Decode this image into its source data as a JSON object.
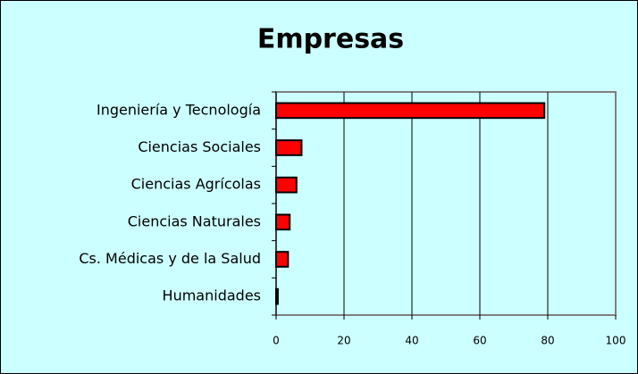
{
  "chart_data": {
    "type": "barh",
    "title": "Empresas",
    "categories": [
      "Ingeniería y Tecnología",
      "Ciencias Sociales",
      "Ciencias Agrícolas",
      "Ciencias Naturales",
      "Cs. Médicas y de la Salud",
      "Humanidades"
    ],
    "values": [
      79,
      7.5,
      6,
      4,
      3.5,
      0.5
    ],
    "color": "#ff0000",
    "xlim": [
      0,
      100
    ],
    "xticks": [
      0,
      20,
      40,
      60,
      80,
      100
    ],
    "grid": true
  }
}
